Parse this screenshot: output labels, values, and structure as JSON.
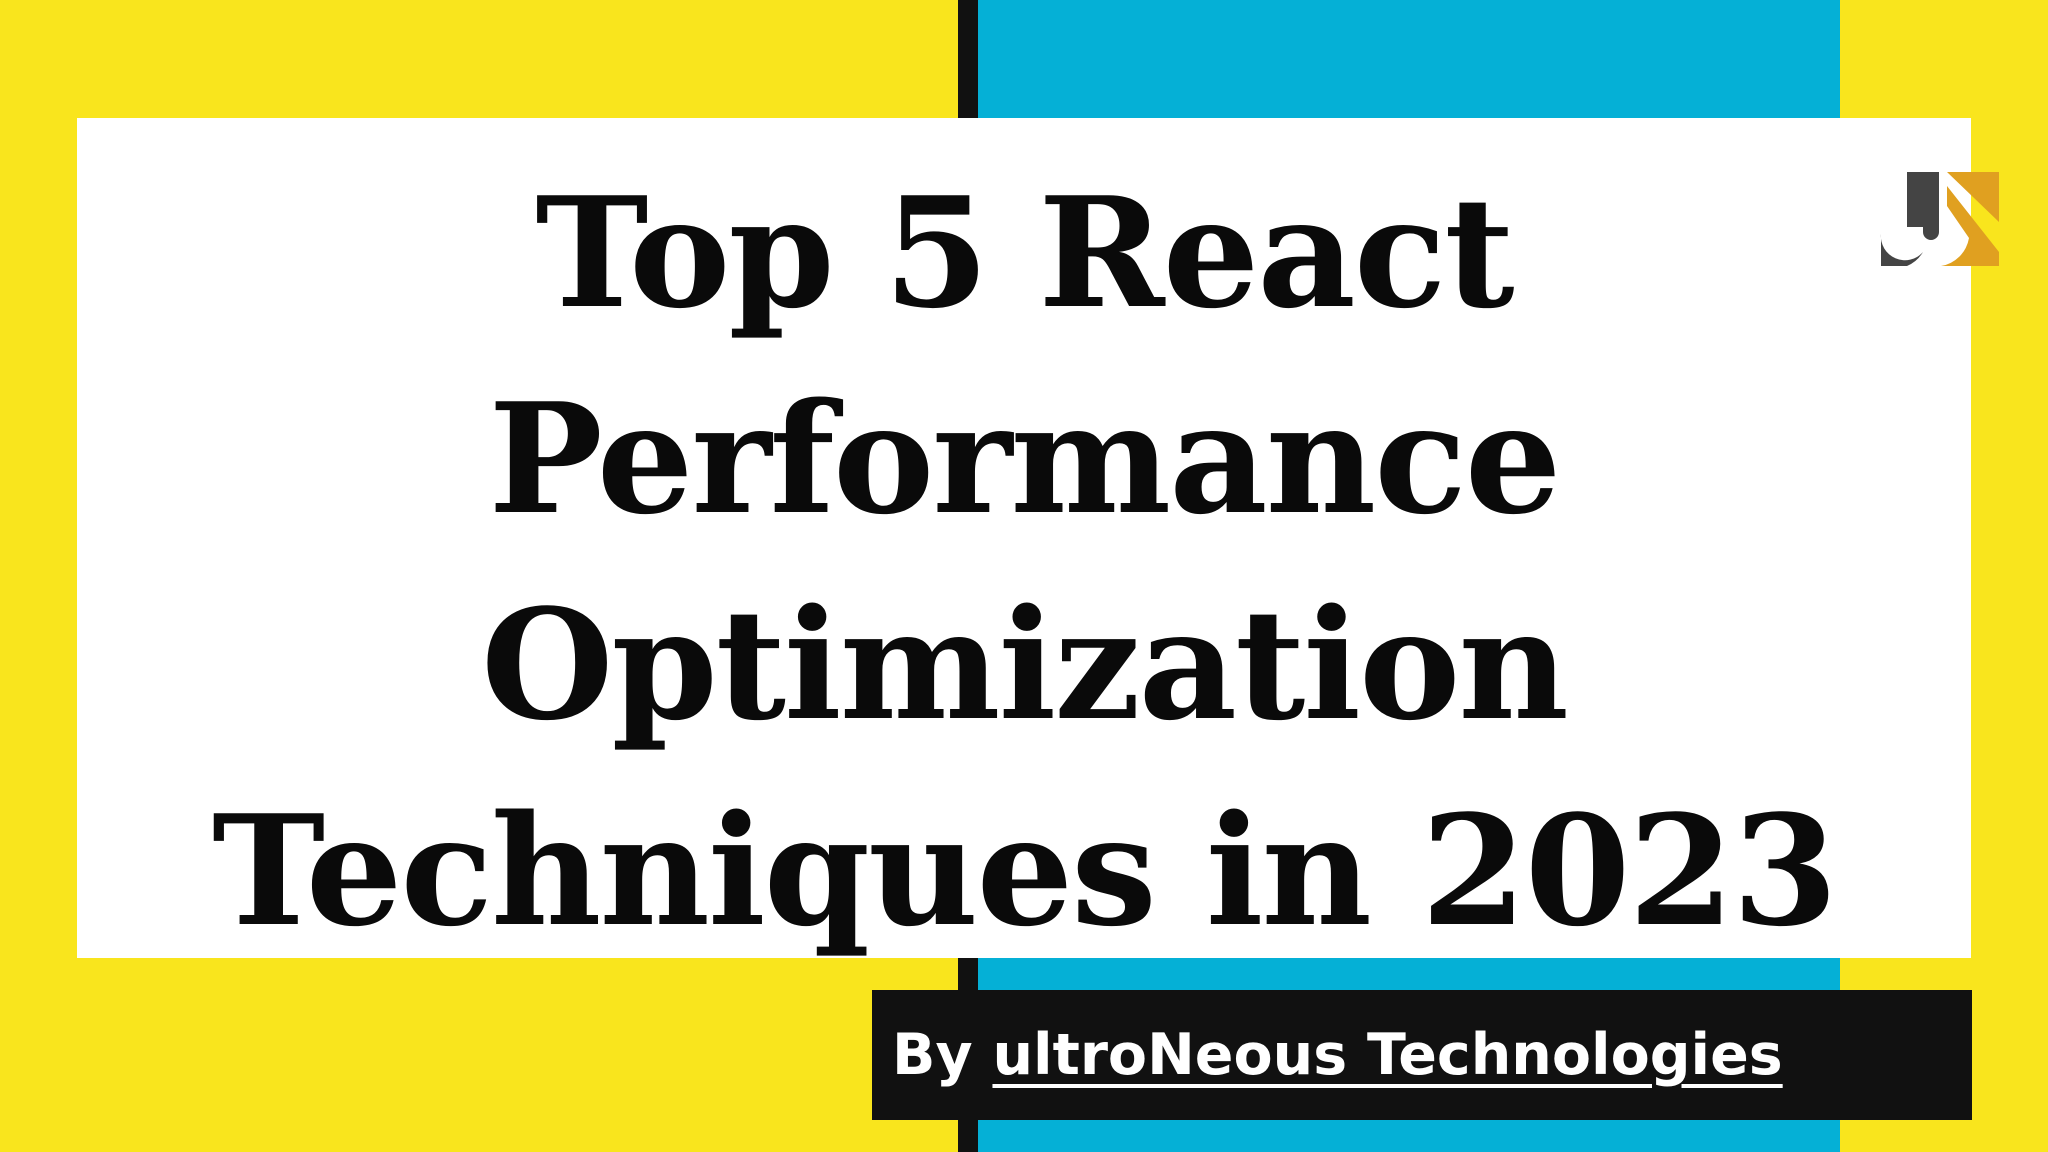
{
  "colors": {
    "background": "#f9e51d",
    "stripe_blue": "#05b0d6",
    "stripe_black": "#111111",
    "card": "#ffffff",
    "logo_orange": "#e0a020",
    "logo_dark": "#444444"
  },
  "title": {
    "lines": [
      "Top 5 React",
      "Performance",
      "Optimization",
      "Techniques in 2023"
    ]
  },
  "logo": {
    "icon": "un-logo-icon"
  },
  "byline": {
    "prefix": "By ",
    "company": "ultroNeous Technologies"
  }
}
